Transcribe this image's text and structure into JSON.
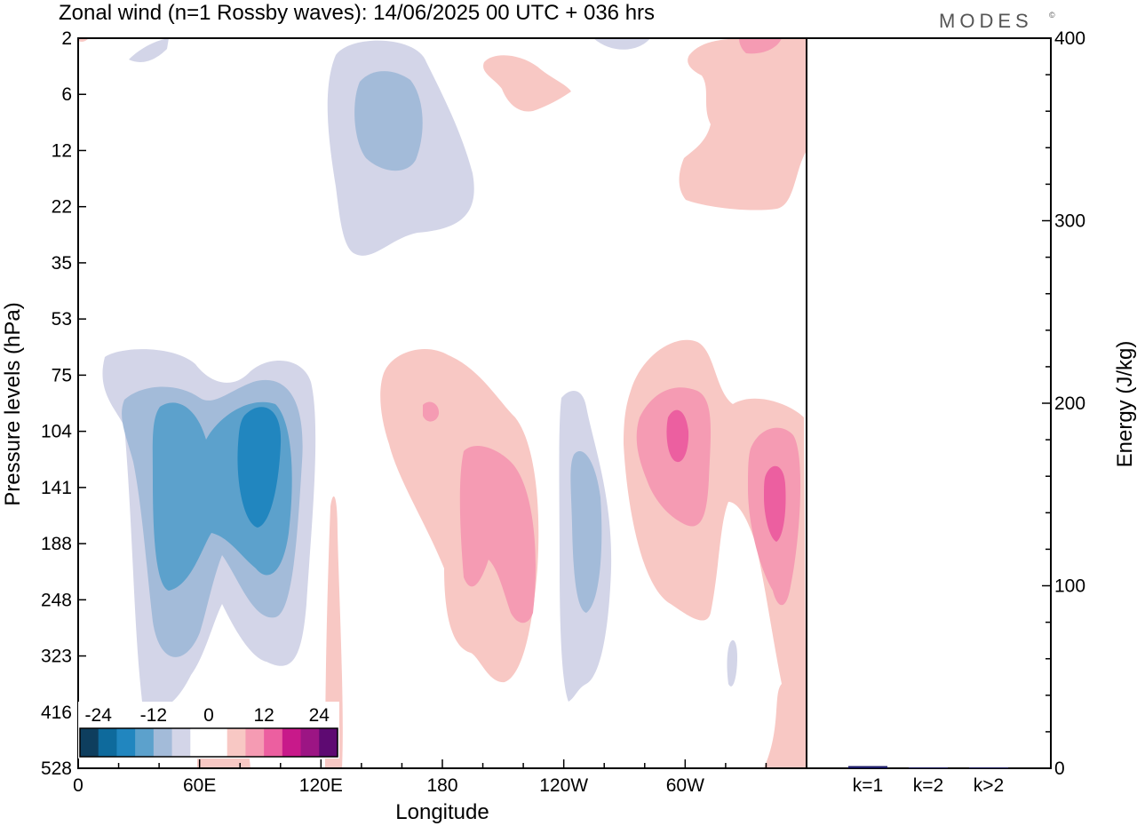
{
  "title": "Zonal wind (n=1 Rossby waves):  14/06/2025  00 UTC  + 036 hrs",
  "brand": "MODES",
  "brand_mark": "©",
  "chart_data": [
    {
      "type": "heatmap",
      "title": "Zonal wind (n=1 Rossby waves):  14/06/2025  00 UTC  + 036 hrs",
      "xlabel": "Longitude",
      "ylabel": "Pressure levels (hPa)",
      "x_ticks": [
        "0",
        "60E",
        "120E",
        "180",
        "120W",
        "60W"
      ],
      "x_tick_values": [
        0,
        60,
        120,
        180,
        240,
        300
      ],
      "x_range": [
        0,
        360
      ],
      "y_ticks": [
        "2",
        "6",
        "12",
        "22",
        "35",
        "53",
        "75",
        "104",
        "141",
        "188",
        "248",
        "323",
        "416",
        "528"
      ],
      "colorbar": {
        "tick_labels": [
          "-24",
          "-12",
          "0",
          "12",
          "24"
        ],
        "tick_values": [
          -24,
          -12,
          0,
          12,
          24
        ],
        "levels": [
          -24,
          -20,
          -16,
          -12,
          -8,
          -4,
          0,
          4,
          8,
          12,
          16,
          20,
          24
        ],
        "colors": [
          "#0e3e5e",
          "#0e6a9c",
          "#2186bf",
          "#5ca1cc",
          "#a3bbd9",
          "#d3d5e8",
          "#ffffff",
          "#ffffff",
          "#f8c8c4",
          "#f59bb3",
          "#ec5fa0",
          "#c8198a",
          "#9c1584",
          "#5e0a72"
        ]
      },
      "features": [
        {
          "sign": "negative",
          "lon_range": [
            115,
            192
          ],
          "pressure_range": [
            2,
            30
          ],
          "min_value": -8
        },
        {
          "sign": "negative",
          "lon_range": [
            10,
            115
          ],
          "pressure_range": [
            70,
            430
          ],
          "min_value": -16
        },
        {
          "sign": "positive",
          "lon_range": [
            150,
            230
          ],
          "pressure_range": [
            65,
            350
          ],
          "max_value": 12
        },
        {
          "sign": "negative",
          "lon_range": [
            238,
            262
          ],
          "pressure_range": [
            95,
            370
          ],
          "min_value": -8
        },
        {
          "sign": "positive",
          "lon_range": [
            270,
            360
          ],
          "pressure_range": [
            60,
            395
          ],
          "max_value": 16
        },
        {
          "sign": "positive",
          "lon_range": [
            295,
            360
          ],
          "pressure_range": [
            2,
            22
          ],
          "max_value": 8
        },
        {
          "sign": "positive",
          "lon_range": [
            200,
            245
          ],
          "pressure_range": [
            3,
            8
          ],
          "max_value": 4
        },
        {
          "sign": "positive",
          "lon_range": [
            122,
            130
          ],
          "pressure_range": [
            165,
            528
          ],
          "max_value": 4
        },
        {
          "sign": "positive",
          "lon_range": [
            58,
            82
          ],
          "pressure_range": [
            420,
            528
          ],
          "max_value": 4
        }
      ]
    },
    {
      "type": "bar",
      "ylabel": "Energy (J/kg)",
      "categories": [
        "k=1",
        "k=2",
        "k>2"
      ],
      "values": [
        1.2,
        0.4,
        0.4
      ],
      "ylim": [
        0,
        400
      ],
      "y_ticks": [
        0,
        100,
        200,
        300,
        400
      ],
      "bar_color": "#1a1a66"
    }
  ]
}
